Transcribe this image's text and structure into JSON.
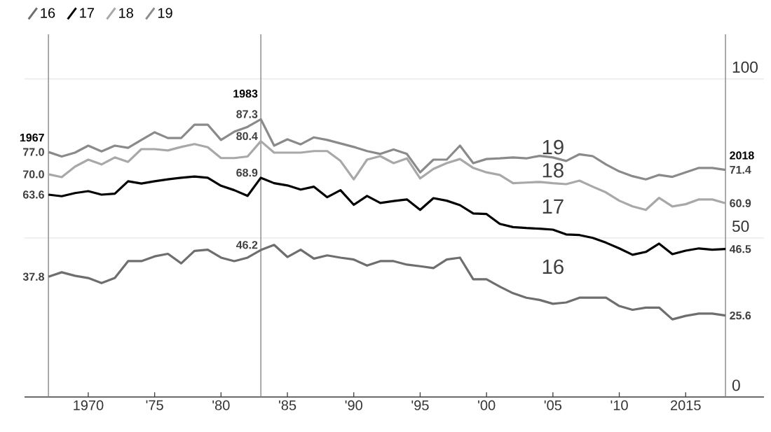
{
  "chart_data": {
    "type": "line",
    "x": [
      1967,
      1968,
      1969,
      1970,
      1971,
      1972,
      1973,
      1974,
      1975,
      1976,
      1977,
      1978,
      1979,
      1980,
      1981,
      1982,
      1983,
      1984,
      1985,
      1986,
      1987,
      1988,
      1989,
      1990,
      1991,
      1992,
      1993,
      1994,
      1995,
      1996,
      1997,
      1998,
      1999,
      2000,
      2001,
      2002,
      2003,
      2004,
      2005,
      2006,
      2007,
      2008,
      2009,
      2010,
      2011,
      2012,
      2013,
      2014,
      2015,
      2016,
      2017,
      2018
    ],
    "series": [
      {
        "name": "16",
        "color": "#6e6e6e",
        "values": [
          37.8,
          39.2,
          38.1,
          37.4,
          35.8,
          37.4,
          42.7,
          42.7,
          44.2,
          45.0,
          42.0,
          45.9,
          46.3,
          43.8,
          42.7,
          43.8,
          46.2,
          47.8,
          44.0,
          46.3,
          43.5,
          44.5,
          43.8,
          43.2,
          41.3,
          42.7,
          42.7,
          41.6,
          41.1,
          40.5,
          43.2,
          43.8,
          37.0,
          37.0,
          34.7,
          32.6,
          31.2,
          30.5,
          29.3,
          29.7,
          31.2,
          31.2,
          31.2,
          28.6,
          27.4,
          28.1,
          28.1,
          24.4,
          25.5,
          26.2,
          26.2,
          25.6
        ]
      },
      {
        "name": "17",
        "color": "#000000",
        "values": [
          63.6,
          63.1,
          64.1,
          64.7,
          63.6,
          63.9,
          67.8,
          67.1,
          67.8,
          68.4,
          68.9,
          69.3,
          68.9,
          66.4,
          65.0,
          63.2,
          68.9,
          67.2,
          66.5,
          65.2,
          66.1,
          62.8,
          65.0,
          60.4,
          63.2,
          61.0,
          61.6,
          62.1,
          58.8,
          62.5,
          61.7,
          60.3,
          57.7,
          57.5,
          54.4,
          53.4,
          53.1,
          52.9,
          52.6,
          51.1,
          50.9,
          50.0,
          48.5,
          46.7,
          44.7,
          45.6,
          48.2,
          44.9,
          46.0,
          46.7,
          46.3,
          46.5
        ]
      },
      {
        "name": "18",
        "color": "#a8a8a8",
        "values": [
          70.0,
          69.1,
          72.4,
          74.6,
          73.1,
          75.3,
          73.9,
          77.9,
          77.9,
          77.5,
          78.6,
          79.5,
          78.5,
          75.1,
          75.1,
          75.6,
          80.4,
          76.8,
          76.8,
          76.8,
          77.3,
          77.3,
          74.2,
          68.4,
          74.6,
          75.7,
          73.5,
          75.0,
          68.7,
          71.7,
          73.5,
          74.8,
          72.0,
          70.6,
          69.8,
          67.2,
          67.4,
          67.6,
          67.2,
          66.9,
          68.0,
          66.1,
          64.3,
          61.7,
          59.9,
          58.8,
          62.6,
          59.9,
          60.6,
          62.1,
          62.1,
          60.9
        ]
      },
      {
        "name": "19",
        "color": "#8a8a8a",
        "values": [
          77.0,
          75.6,
          76.8,
          79.0,
          77.2,
          79.0,
          78.3,
          80.8,
          83.2,
          81.4,
          81.4,
          85.6,
          85.6,
          80.8,
          83.4,
          84.9,
          87.3,
          79.0,
          81.0,
          79.4,
          81.6,
          80.8,
          79.7,
          78.6,
          77.3,
          76.4,
          77.8,
          76.4,
          70.6,
          74.6,
          74.6,
          79.0,
          73.5,
          74.8,
          75.0,
          75.3,
          75.0,
          75.8,
          75.3,
          74.2,
          76.3,
          75.7,
          73.1,
          70.9,
          69.4,
          68.4,
          69.8,
          69.2,
          70.6,
          72.0,
          72.0,
          71.4
        ]
      }
    ],
    "xlim": [
      1965.2,
      2020.9
    ],
    "ylim": [
      0,
      114
    ],
    "xticks": [
      {
        "value": 1970,
        "label": "1970"
      },
      {
        "value": 1975,
        "label": "'75"
      },
      {
        "value": 1980,
        "label": "'80"
      },
      {
        "value": 1985,
        "label": "'85"
      },
      {
        "value": 1990,
        "label": "'90"
      },
      {
        "value": 1995,
        "label": "'95"
      },
      {
        "value": 2000,
        "label": "'00"
      },
      {
        "value": 2005,
        "label": "'05"
      },
      {
        "value": 2010,
        "label": "'10"
      },
      {
        "value": 2015,
        "label": "2015"
      }
    ],
    "yticks": [
      0,
      50,
      100
    ],
    "grid": "y",
    "legend": "top left",
    "ref_lines": [
      {
        "axis": "x",
        "value": 1967,
        "label": "1967",
        "color": "#808080"
      },
      {
        "axis": "x",
        "value": 1983,
        "label": "1983",
        "color": "#808080"
      },
      {
        "axis": "x",
        "value": 2018,
        "label": "2018",
        "color": "#808080"
      }
    ],
    "annotations": [
      {
        "text": "77.0",
        "x": 1967,
        "y": 77.0
      },
      {
        "text": "70.0",
        "x": 1967,
        "y": 70.0
      },
      {
        "text": "63.6",
        "x": 1967,
        "y": 63.6
      },
      {
        "text": "37.8",
        "x": 1967,
        "y": 37.8
      },
      {
        "text": "87.3",
        "x": 1983,
        "y": 87.3
      },
      {
        "text": "80.4",
        "x": 1983,
        "y": 80.4
      },
      {
        "text": "68.9",
        "x": 1983,
        "y": 68.9
      },
      {
        "text": "46.2",
        "x": 1983,
        "y": 46.2
      },
      {
        "text": "71.4",
        "x": 2018,
        "y": 71.4
      },
      {
        "text": "60.9",
        "x": 2018,
        "y": 60.9
      },
      {
        "text": "46.5",
        "x": 2018,
        "y": 46.5
      },
      {
        "text": "25.6",
        "x": 2018,
        "y": 25.6
      }
    ]
  }
}
